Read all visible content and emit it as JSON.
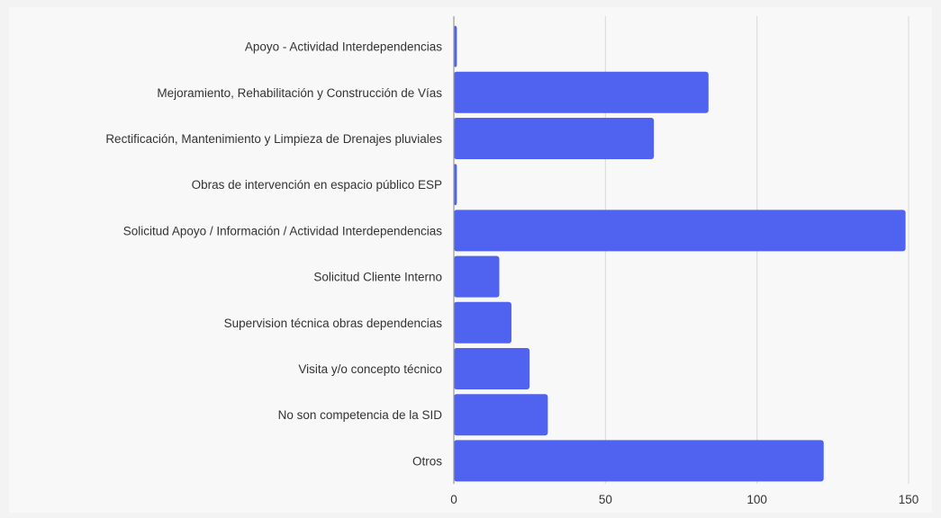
{
  "chart_data": {
    "type": "bar",
    "orientation": "horizontal",
    "categories": [
      "Apoyo - Actividad Interdependencias",
      "Mejoramiento, Rehabilitación y Construcción de Vías",
      "Rectificación, Mantenimiento y Limpieza de Drenajes pluviales",
      "Obras de intervención en espacio público ESP",
      "Solicitud Apoyo / Información / Actividad Interdependencias",
      "Solicitud Cliente Interno",
      "Supervision técnica obras dependencias",
      "Visita y/o concepto técnico",
      "No son competencia de la SID",
      "Otros"
    ],
    "values": [
      1,
      84,
      66,
      1,
      149,
      15,
      19,
      25,
      31,
      122
    ],
    "xlim": [
      0,
      150
    ],
    "xticks": [
      0,
      50,
      100,
      150
    ],
    "title": "",
    "xlabel": "",
    "ylabel": "",
    "grid": "vertical",
    "legend": "none",
    "bar_color": "#4f63f0"
  }
}
